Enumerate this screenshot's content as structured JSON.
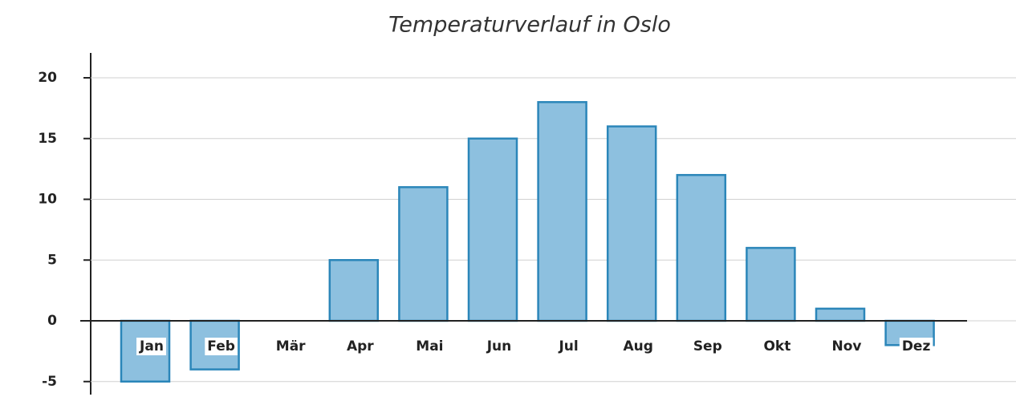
{
  "chart_data": {
    "type": "bar",
    "title": "Temperaturverlauf in Oslo",
    "categories": [
      "Jan",
      "Feb",
      "Mär",
      "Apr",
      "Mai",
      "Jun",
      "Jul",
      "Aug",
      "Sep",
      "Okt",
      "Nov",
      "Dez"
    ],
    "values": [
      -5,
      -4,
      0,
      5,
      11,
      15,
      18,
      16,
      12,
      6,
      1,
      -2
    ],
    "color": "#8dc0df",
    "edge_color": "#2b86b9",
    "ylim": [
      -6,
      22
    ],
    "yticks": [
      -5,
      0,
      5,
      10,
      15,
      20
    ],
    "grid": true
  }
}
